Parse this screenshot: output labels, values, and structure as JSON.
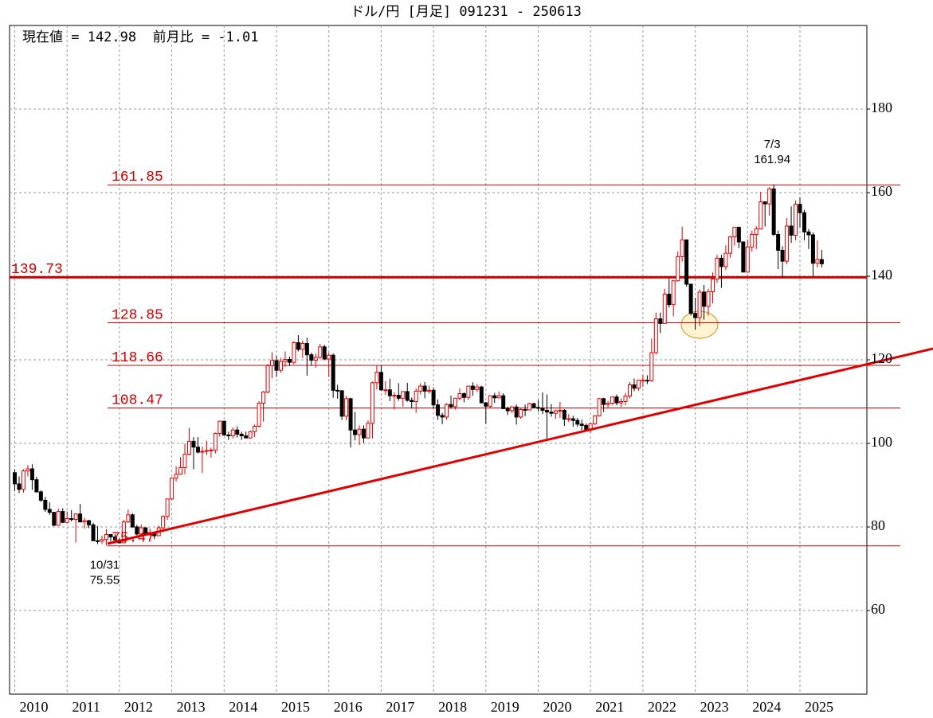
{
  "chart_data": {
    "type": "candlestick",
    "title": "ドル/円 [月足] 091231 - 250613",
    "subtitle": "現在値 = 142.98  前月比 = -1.01",
    "categories": [
      "2010",
      null,
      null,
      null,
      null,
      null,
      null,
      null,
      null,
      null,
      null,
      null,
      "2011",
      null,
      null,
      null,
      null,
      null,
      null,
      null,
      null,
      null,
      null,
      null,
      "2012",
      null,
      null,
      null,
      null,
      null,
      null,
      null,
      null,
      null,
      null,
      null,
      "2013",
      null,
      null,
      null,
      null,
      null,
      null,
      null,
      null,
      null,
      null,
      null,
      "2014",
      null,
      null,
      null,
      null,
      null,
      null,
      null,
      null,
      null,
      null,
      null,
      "2015",
      null,
      null,
      null,
      null,
      null,
      null,
      null,
      null,
      null,
      null,
      null,
      "2016",
      null,
      null,
      null,
      null,
      null,
      null,
      null,
      null,
      null,
      null,
      null,
      "2017",
      null,
      null,
      null,
      null,
      null,
      null,
      null,
      null,
      null,
      null,
      null,
      "2018",
      null,
      null,
      null,
      null,
      null,
      null,
      null,
      null,
      null,
      null,
      null,
      "2019",
      null,
      null,
      null,
      null,
      null,
      null,
      null,
      null,
      null,
      null,
      null,
      "2020",
      null,
      null,
      null,
      null,
      null,
      null,
      null,
      null,
      null,
      null,
      null,
      "2021",
      null,
      null,
      null,
      null,
      null,
      null,
      null,
      null,
      null,
      null,
      null,
      "2022",
      null,
      null,
      null,
      null,
      null,
      null,
      null,
      null,
      null,
      null,
      null,
      "2023",
      null,
      null,
      null,
      null,
      null,
      null,
      null,
      null,
      null,
      null,
      null,
      "2024",
      null,
      null,
      null,
      null,
      null,
      null,
      null,
      null,
      null,
      null,
      null,
      "2025",
      null,
      null,
      null,
      null,
      null
    ],
    "open": [
      93.0,
      90.3,
      89.0,
      93.4,
      93.9,
      91.3,
      88.4,
      86.4,
      84.2,
      83.5,
      80.4,
      83.7,
      81.1,
      82.0,
      81.8,
      83.1,
      81.2,
      81.5,
      80.5,
      76.7,
      76.6,
      77.0,
      78.2,
      77.6,
      76.9,
      76.2,
      81.2,
      82.9,
      80.0,
      78.3,
      79.8,
      78.1,
      78.4,
      77.9,
      79.8,
      82.5,
      86.7,
      91.7,
      92.6,
      94.2,
      97.4,
      100.5,
      99.1,
      97.9,
      98.1,
      98.3,
      98.4,
      102.4,
      105.3,
      102.0,
      101.8,
      103.2,
      102.2,
      101.8,
      101.3,
      102.8,
      104.1,
      109.6,
      112.3,
      118.6,
      119.8,
      117.5,
      119.6,
      120.1,
      119.4,
      124.1,
      122.5,
      123.9,
      121.2,
      119.9,
      120.6,
      123.1,
      120.2,
      121.1,
      112.7,
      112.6,
      106.5,
      110.7,
      103.2,
      102.1,
      103.4,
      101.3,
      104.8,
      114.5,
      117.0,
      112.8,
      112.8,
      111.4,
      111.5,
      110.8,
      112.4,
      110.3,
      110.0,
      112.5,
      113.7,
      112.5,
      112.7,
      109.2,
      106.7,
      106.3,
      109.3,
      108.8,
      110.8,
      111.9,
      111.0,
      113.7,
      112.9,
      113.5,
      109.7,
      108.9,
      111.4,
      110.9,
      111.4,
      108.3,
      107.8,
      108.7,
      106.3,
      108.1,
      108.0,
      109.5,
      108.6,
      108.4,
      107.9,
      107.5,
      107.2,
      107.8,
      107.9,
      105.8,
      105.9,
      105.5,
      104.6,
      104.3,
      103.3,
      104.7,
      106.6,
      110.7,
      109.3,
      109.6,
      111.1,
      109.7,
      110.0,
      111.3,
      114.0,
      113.2,
      115.1,
      115.1,
      115.0,
      121.7,
      129.8,
      128.7,
      135.7,
      133.2,
      138.9,
      144.7,
      148.7,
      138.1,
      131.1,
      130.1,
      136.2,
      132.8,
      136.3,
      139.3,
      144.3,
      142.3,
      145.5,
      149.4,
      151.7,
      148.2,
      141.0,
      147.0,
      150.0,
      151.3,
      157.8,
      157.3,
      160.9,
      150.0,
      146.2,
      143.6,
      152.0,
      149.8,
      157.2,
      155.2,
      150.6,
      149.9,
      143.1,
      143.99
    ],
    "high": [
      93.8,
      92.1,
      93.8,
      94.8,
      95.0,
      92.0,
      88.8,
      87.2,
      85.9,
      83.6,
      84.4,
      84.5,
      83.7,
      84.0,
      83.3,
      85.5,
      82.2,
      81.7,
      81.0,
      80.2,
      77.9,
      79.5,
      78.3,
      78.3,
      77.3,
      81.7,
      84.2,
      83.3,
      80.5,
      80.6,
      79.9,
      79.6,
      78.8,
      80.3,
      82.8,
      86.8,
      91.8,
      94.5,
      96.7,
      99.9,
      103.7,
      101.5,
      101.5,
      99.2,
      100.6,
      99.0,
      102.6,
      105.4,
      105.4,
      102.8,
      103.8,
      104.1,
      102.8,
      102.8,
      103.1,
      104.5,
      110.1,
      112.5,
      119.0,
      121.8,
      121.0,
      120.5,
      122.0,
      120.8,
      124.5,
      125.9,
      124.6,
      125.3,
      121.7,
      121.5,
      123.8,
      123.6,
      121.7,
      121.5,
      114.0,
      112.7,
      111.4,
      110.9,
      107.5,
      104.3,
      104.3,
      105.5,
      114.8,
      118.7,
      118.6,
      114.9,
      115.5,
      112.2,
      114.4,
      112.5,
      114.5,
      111.0,
      113.2,
      114.4,
      114.7,
      113.8,
      113.4,
      110.5,
      107.3,
      109.6,
      111.4,
      110.9,
      113.2,
      112.2,
      113.7,
      114.6,
      114.2,
      113.8,
      109.9,
      111.5,
      112.1,
      112.4,
      112.0,
      108.8,
      109.0,
      109.3,
      108.5,
      109.3,
      109.7,
      109.7,
      110.3,
      112.2,
      111.7,
      109.4,
      108.1,
      109.9,
      108.2,
      107.0,
      106.6,
      106.1,
      105.7,
      104.8,
      104.9,
      106.7,
      110.9,
      110.9,
      110.2,
      111.1,
      111.7,
      110.8,
      112.1,
      114.7,
      115.5,
      115.2,
      116.4,
      116.3,
      125.1,
      131.3,
      131.3,
      137.0,
      139.4,
      139.1,
      145.9,
      151.9,
      148.8,
      138.2,
      134.8,
      136.9,
      137.9,
      137.0,
      140.9,
      145.1,
      145.1,
      147.4,
      149.7,
      151.7,
      151.9,
      148.3,
      148.8,
      150.9,
      151.97,
      160.2,
      157.9,
      161.3,
      161.94,
      150.9,
      147.2,
      153.9,
      156.7,
      158.1,
      158.9,
      155.9,
      151.3,
      150.5,
      148.6,
      146.3
    ],
    "low": [
      88.6,
      88.1,
      88.2,
      92.1,
      88.9,
      88.2,
      86.0,
      83.6,
      82.9,
      80.2,
      80.3,
      80.9,
      81.0,
      81.3,
      76.3,
      81.2,
      79.6,
      79.7,
      76.6,
      75.9,
      75.9,
      75.55,
      76.6,
      76.9,
      76.1,
      76.1,
      80.9,
      79.8,
      78.0,
      77.7,
      77.9,
      77.9,
      77.1,
      77.8,
      79.1,
      81.7,
      86.5,
      90.9,
      92.5,
      92.6,
      97.1,
      93.8,
      97.6,
      92.9,
      97.2,
      96.6,
      97.6,
      101.6,
      101.8,
      100.8,
      101.2,
      101.4,
      100.8,
      101.2,
      101.1,
      101.5,
      103.8,
      105.2,
      112.0,
      115.6,
      115.9,
      116.9,
      118.3,
      118.5,
      118.9,
      122.0,
      120.4,
      116.2,
      118.6,
      118.1,
      120.2,
      119.9,
      115.9,
      110.9,
      110.7,
      105.6,
      105.5,
      99.0,
      100.7,
      99.6,
      100.1,
      101.2,
      101.2,
      112.9,
      112.5,
      111.6,
      110.1,
      108.1,
      110.2,
      108.8,
      110.0,
      108.3,
      107.3,
      111.7,
      110.8,
      111.9,
      108.3,
      105.6,
      104.6,
      105.7,
      108.3,
      108.1,
      110.3,
      109.8,
      110.4,
      111.4,
      112.3,
      109.6,
      104.7,
      108.5,
      109.7,
      110.8,
      108.3,
      106.8,
      107.2,
      104.5,
      105.9,
      106.5,
      107.9,
      108.4,
      107.6,
      107.0,
      101.2,
      106.4,
      105.9,
      106.1,
      104.2,
      105.1,
      104.0,
      104.0,
      103.2,
      102.9,
      102.6,
      104.4,
      106.4,
      107.5,
      108.3,
      109.2,
      109.1,
      108.7,
      109.1,
      110.8,
      112.5,
      112.6,
      113.5,
      114.2,
      114.7,
      121.3,
      126.4,
      128.6,
      132.5,
      130.4,
      138.7,
      143.5,
      137.5,
      130.6,
      127.2,
      128.1,
      129.6,
      130.6,
      133.5,
      138.4,
      137.2,
      141.5,
      144.4,
      147.3,
      146.7,
      140.9,
      140.8,
      145.9,
      146.5,
      151.2,
      151.9,
      154.5,
      149.6,
      141.7,
      139.6,
      142.9,
      148.0,
      148.6,
      151.7,
      148.6,
      146.5,
      139.9,
      142.1,
      142.1
    ],
    "close": [
      90.3,
      89.0,
      93.4,
      93.9,
      91.3,
      88.4,
      86.4,
      84.2,
      83.5,
      80.4,
      83.7,
      81.1,
      82.0,
      81.8,
      83.1,
      81.2,
      81.5,
      80.5,
      76.7,
      76.6,
      77.0,
      78.2,
      77.6,
      76.9,
      76.2,
      81.2,
      82.9,
      80.0,
      78.3,
      79.8,
      78.1,
      78.4,
      77.9,
      79.8,
      82.5,
      86.7,
      91.7,
      92.6,
      94.2,
      97.4,
      100.5,
      99.1,
      97.9,
      98.1,
      98.3,
      98.4,
      102.4,
      105.3,
      102.0,
      101.8,
      103.2,
      102.2,
      101.8,
      101.3,
      102.8,
      104.1,
      109.6,
      112.3,
      118.6,
      119.8,
      117.5,
      119.6,
      120.1,
      119.4,
      124.1,
      122.5,
      123.9,
      121.2,
      119.9,
      120.6,
      123.1,
      120.2,
      121.1,
      112.7,
      112.6,
      106.5,
      110.7,
      103.2,
      102.1,
      103.4,
      101.3,
      104.8,
      114.5,
      117.0,
      112.8,
      112.8,
      111.4,
      111.5,
      110.8,
      112.4,
      110.3,
      110.0,
      112.5,
      113.7,
      112.5,
      112.7,
      109.2,
      106.7,
      106.3,
      109.3,
      108.8,
      110.8,
      111.9,
      111.0,
      113.7,
      112.9,
      113.5,
      109.7,
      108.9,
      111.4,
      110.9,
      111.4,
      108.3,
      107.8,
      108.7,
      106.3,
      108.1,
      108.0,
      109.5,
      108.6,
      108.4,
      107.9,
      107.5,
      107.2,
      107.8,
      107.9,
      105.8,
      105.9,
      105.5,
      104.6,
      104.3,
      103.3,
      104.7,
      106.6,
      110.7,
      109.3,
      109.6,
      111.1,
      109.7,
      110.0,
      111.3,
      114.0,
      113.2,
      115.1,
      115.1,
      115.0,
      121.7,
      129.8,
      128.7,
      135.7,
      133.2,
      138.9,
      144.7,
      148.7,
      138.1,
      131.1,
      130.1,
      136.2,
      132.8,
      136.3,
      139.3,
      144.3,
      142.3,
      145.5,
      149.4,
      151.7,
      148.2,
      141.0,
      147.0,
      150.0,
      151.3,
      157.8,
      157.3,
      160.9,
      150.0,
      146.2,
      143.6,
      152.0,
      149.8,
      157.2,
      155.2,
      150.6,
      149.9,
      143.1,
      143.99,
      142.98
    ],
    "up_color": "#e00000",
    "down_color": "#000000",
    "ylim": [
      40,
      200
    ],
    "yticks": [
      60,
      80,
      100,
      120,
      140,
      160,
      180
    ],
    "grid": true,
    "level_color": "#d00000",
    "levels": [
      {
        "value": 161.85
      },
      {
        "value": 139.73,
        "style": "bold"
      },
      {
        "value": 128.85
      },
      {
        "value": 118.66
      },
      {
        "value": 108.47
      },
      {
        "value": 75.47
      }
    ],
    "annotations": [
      {
        "text": "7/3",
        "value": 161.94
      },
      {
        "text": "10/31",
        "value": 75.55
      }
    ]
  }
}
